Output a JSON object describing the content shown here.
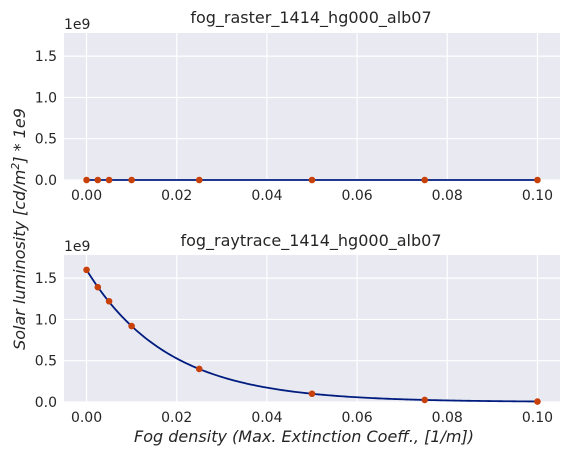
{
  "figure": {
    "ylabel": "Solar luminosity [cd/m²] * 1e9",
    "xlabel": "Fog density (Max. Extinction Coeff., [1/m])"
  },
  "colors": {
    "plot_bg": "#e8e9f1",
    "grid": "#ffffff",
    "line": "#001c7f",
    "marker": "#c8410a",
    "text": "#262626"
  },
  "chart_data": [
    {
      "type": "line",
      "title": "fog_raster_1414_hg000_alb07",
      "offset_label": "1e9",
      "xlim": [
        -0.005,
        0.105
      ],
      "ylim": [
        0,
        1.78
      ],
      "xticks": [
        0.0,
        0.02,
        0.04,
        0.06,
        0.08,
        0.1
      ],
      "xtick_labels": [
        "0.00",
        "0.02",
        "0.04",
        "0.06",
        "0.08",
        "0.10"
      ],
      "yticks": [
        0.0,
        0.5,
        1.0,
        1.5
      ],
      "ytick_labels": [
        "0.0",
        "0.5",
        "1.0",
        "1.5"
      ],
      "grid": true,
      "line_function": "constant",
      "line_value": 0.0,
      "points": {
        "x": [
          0.0,
          0.0025,
          0.005,
          0.01,
          0.025,
          0.05,
          0.075,
          0.1
        ],
        "y": [
          0.0,
          0.0,
          0.0,
          0.0,
          0.0,
          0.0,
          0.0,
          0.0
        ]
      }
    },
    {
      "type": "line",
      "title": "fog_raytrace_1414_hg000_alb07",
      "offset_label": "1e9",
      "xlim": [
        -0.005,
        0.105
      ],
      "ylim": [
        0,
        1.78
      ],
      "xticks": [
        0.0,
        0.02,
        0.04,
        0.06,
        0.08,
        0.1
      ],
      "xtick_labels": [
        "0.00",
        "0.02",
        "0.04",
        "0.06",
        "0.08",
        "0.10"
      ],
      "yticks": [
        0.0,
        0.5,
        1.0,
        1.5
      ],
      "ytick_labels": [
        "0.0",
        "0.5",
        "1.0",
        "1.5"
      ],
      "grid": true,
      "line_function": "exponential",
      "line_a": 1.6,
      "line_k": 55.5,
      "points": {
        "x": [
          0.0,
          0.0025,
          0.005,
          0.01,
          0.025,
          0.05,
          0.075,
          0.1
        ],
        "y": [
          1.6,
          1.39,
          1.22,
          0.92,
          0.4,
          0.1,
          0.025,
          0.005
        ]
      }
    }
  ]
}
